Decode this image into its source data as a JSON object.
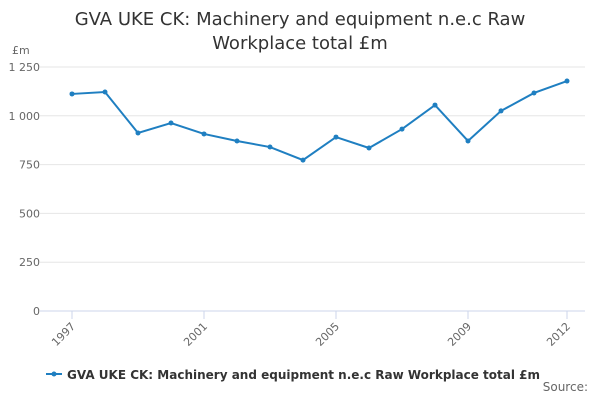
{
  "chart_data": {
    "type": "line",
    "title": "GVA UKE CK: Machinery and equipment n.e.c Raw Workplace total £m",
    "y_label": "£m",
    "source": "Source:",
    "x": [
      1997,
      1998,
      1999,
      2000,
      2001,
      2002,
      2003,
      2004,
      2005,
      2006,
      2007,
      2008,
      2009,
      2010,
      2011,
      2012
    ],
    "series": [
      {
        "name": "GVA UKE CK: Machinery and equipment n.e.c Raw Workplace total £m",
        "color": "#1f7fc1",
        "values": [
          1112,
          1122,
          912,
          963,
          907,
          871,
          840,
          773,
          891,
          835,
          932,
          1055,
          871,
          1025,
          1117,
          1178
        ]
      }
    ],
    "xlim": [
      1997,
      2012
    ],
    "xticks": [
      1997,
      2001,
      2005,
      2009,
      2012
    ],
    "ylim": [
      0,
      1250
    ],
    "yticks": [
      0,
      250,
      500,
      750,
      {
        "value": 1000,
        "label": "1 000"
      },
      {
        "value": 1250,
        "label": "1 250"
      }
    ],
    "grid": true,
    "legend": "bottom"
  }
}
